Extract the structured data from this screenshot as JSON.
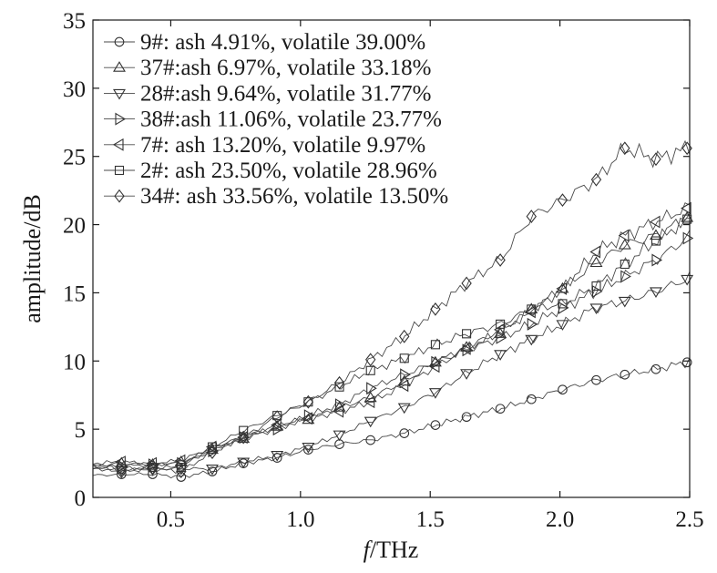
{
  "chart_data": {
    "type": "line",
    "title": "",
    "xlabel_italic": "f",
    "xlabel_rest": "/THz",
    "ylabel": "amplitude/dB",
    "xlim": [
      0.2,
      2.5
    ],
    "ylim": [
      0,
      35
    ],
    "xticks": [
      0.5,
      1.0,
      1.5,
      2.0,
      2.5
    ],
    "xtick_labels": [
      "0.5",
      "1.0",
      "1.5",
      "2.0",
      "2.5"
    ],
    "yticks": [
      0,
      5,
      10,
      15,
      20,
      25,
      30,
      35
    ],
    "ytick_labels": [
      "0",
      "5",
      "10",
      "15",
      "20",
      "25",
      "30",
      "35"
    ],
    "grid": false,
    "legend_position": "top-left",
    "marker_x": [
      0.31,
      0.43,
      0.54,
      0.66,
      0.78,
      0.91,
      1.03,
      1.15,
      1.27,
      1.4,
      1.52,
      1.64,
      1.77,
      1.89,
      2.01,
      2.14,
      2.25,
      2.37,
      2.49
    ],
    "series": [
      {
        "name": "9#: ash 4.91%, volatile 39.00%",
        "marker": "circle",
        "x": [
          0.2,
          0.31,
          0.43,
          0.54,
          0.66,
          0.78,
          0.91,
          1.03,
          1.15,
          1.27,
          1.4,
          1.52,
          1.64,
          1.77,
          1.89,
          2.01,
          2.14,
          2.25,
          2.37,
          2.49,
          2.5
        ],
        "values": [
          1.6,
          1.7,
          1.7,
          1.5,
          1.9,
          2.5,
          2.9,
          3.5,
          3.9,
          4.2,
          4.7,
          5.3,
          5.9,
          6.5,
          7.2,
          7.9,
          8.6,
          9.0,
          9.4,
          9.9,
          10.1
        ]
      },
      {
        "name": "37#:ash 6.97%, volatile 33.18%",
        "marker": "triangle-up",
        "x": [
          0.2,
          0.31,
          0.43,
          0.54,
          0.66,
          0.78,
          0.91,
          1.03,
          1.15,
          1.27,
          1.4,
          1.52,
          1.64,
          1.77,
          1.89,
          2.01,
          2.14,
          2.25,
          2.37,
          2.49,
          2.5
        ],
        "values": [
          2.3,
          2.5,
          2.4,
          2.6,
          3.5,
          4.3,
          5.2,
          5.7,
          6.6,
          7.3,
          8.5,
          9.9,
          11.0,
          12.0,
          13.8,
          15.3,
          17.2,
          18.5,
          19.2,
          20.5,
          20.6
        ]
      },
      {
        "name": "28#:ash 9.64%, volatile 31.77%",
        "marker": "triangle-down",
        "x": [
          0.2,
          0.31,
          0.43,
          0.54,
          0.66,
          0.78,
          0.91,
          1.03,
          1.15,
          1.27,
          1.4,
          1.52,
          1.64,
          1.77,
          1.89,
          2.01,
          2.14,
          2.25,
          2.37,
          2.49,
          2.5
        ],
        "values": [
          2.1,
          2.0,
          2.1,
          2.1,
          2.1,
          2.6,
          3.1,
          3.7,
          4.6,
          5.6,
          6.6,
          7.7,
          9.1,
          10.5,
          11.6,
          12.7,
          13.9,
          14.4,
          15.1,
          16.0,
          16.2
        ]
      },
      {
        "name": "38#:ash 11.06%, volatile 23.77%",
        "marker": "triangle-right",
        "x": [
          0.2,
          0.31,
          0.43,
          0.54,
          0.66,
          0.78,
          0.91,
          1.03,
          1.15,
          1.27,
          1.4,
          1.52,
          1.64,
          1.77,
          1.89,
          2.01,
          2.14,
          2.25,
          2.37,
          2.49,
          2.5
        ],
        "values": [
          2.2,
          2.3,
          2.4,
          2.5,
          3.4,
          4.4,
          5.0,
          6.0,
          6.8,
          8.0,
          9.0,
          9.9,
          10.8,
          11.7,
          12.7,
          13.9,
          15.1,
          16.2,
          17.4,
          19.0,
          19.3
        ]
      },
      {
        "name": "7#: ash 13.20%, volatile 9.97%",
        "marker": "triangle-left",
        "x": [
          0.2,
          0.31,
          0.43,
          0.54,
          0.66,
          0.78,
          0.91,
          1.03,
          1.15,
          1.27,
          1.4,
          1.52,
          1.64,
          1.77,
          1.89,
          2.01,
          2.14,
          2.25,
          2.37,
          2.49,
          2.5
        ],
        "values": [
          2.5,
          2.6,
          2.5,
          2.7,
          3.7,
          4.4,
          5.3,
          5.8,
          6.3,
          7.0,
          8.2,
          9.6,
          10.9,
          12.3,
          13.6,
          15.3,
          18.0,
          19.2,
          20.2,
          21.2,
          21.4
        ]
      },
      {
        "name": "2#: ash 23.50%, volatile 28.96%",
        "marker": "square",
        "x": [
          0.2,
          0.31,
          0.43,
          0.54,
          0.66,
          0.78,
          0.91,
          1.03,
          1.15,
          1.27,
          1.4,
          1.52,
          1.64,
          1.77,
          1.89,
          2.01,
          2.14,
          2.25,
          2.37,
          2.49,
          2.5
        ],
        "values": [
          2.4,
          2.1,
          2.2,
          2.2,
          3.7,
          4.9,
          6.0,
          7.0,
          8.1,
          9.3,
          10.2,
          11.2,
          12.0,
          12.7,
          13.8,
          14.2,
          15.5,
          17.1,
          18.8,
          20.4,
          20.6
        ]
      },
      {
        "name": "34#: ash 33.56%, volatile 13.50%",
        "marker": "diamond",
        "x": [
          0.2,
          0.31,
          0.43,
          0.54,
          0.66,
          0.78,
          0.91,
          1.03,
          1.15,
          1.27,
          1.4,
          1.52,
          1.64,
          1.77,
          1.89,
          2.01,
          2.14,
          2.25,
          2.37,
          2.49,
          2.5
        ],
        "values": [
          2.2,
          1.9,
          2.1,
          1.9,
          3.3,
          4.4,
          5.9,
          7.0,
          8.4,
          10.1,
          11.8,
          13.8,
          15.7,
          17.4,
          20.6,
          21.8,
          23.3,
          25.6,
          24.8,
          25.6,
          25.8
        ]
      }
    ]
  }
}
